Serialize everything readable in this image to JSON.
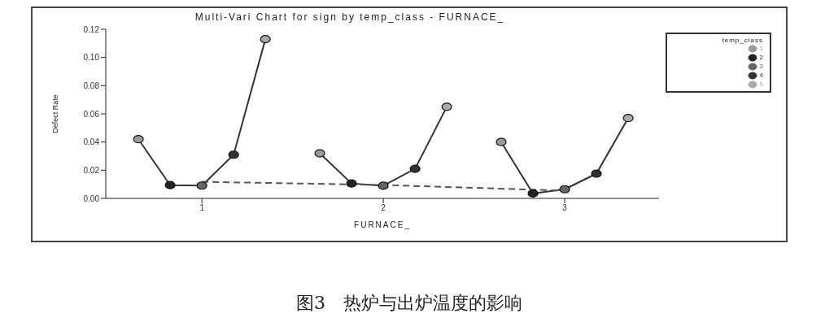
{
  "chart_data": {
    "type": "line",
    "title": "Multi-Vari Chart for sign by temp_class - FURNACE_",
    "xlabel": "FURNACE_",
    "ylabel": "Defect Rate",
    "legend_title": "temp_class",
    "legend": "right",
    "grid": false,
    "marker": "circle",
    "xlim": [
      0.47,
      3.52
    ],
    "xticks": [
      1,
      2,
      3
    ],
    "ylim": [
      0,
      0.12
    ],
    "yticks": [
      {
        "value": 0,
        "label": "0.00"
      },
      {
        "value": 0.02,
        "label": "0.02"
      },
      {
        "value": 0.04,
        "label": "0.04"
      },
      {
        "value": 0.06,
        "label": "0.06"
      },
      {
        "value": 0.08,
        "label": "0.08"
      },
      {
        "value": 0.1,
        "label": "0.10"
      },
      {
        "value": 0.12,
        "label": "0.12"
      }
    ],
    "series": [
      {
        "marker": "none",
        "color": "#333333",
        "x": [
          0.65,
          0.825,
          1,
          1.175,
          1.35
        ],
        "values": [
          0.042,
          0.0094,
          0.0091,
          0.031,
          0.113
        ]
      },
      {
        "marker": "none",
        "color": "#333333",
        "x": [
          1.65,
          1.825,
          2,
          2.175,
          2.35
        ],
        "values": [
          0.032,
          0.0106,
          0.009,
          0.021,
          0.065
        ]
      },
      {
        "marker": "none",
        "color": "#333333",
        "x": [
          2.65,
          2.825,
          3,
          3.175,
          3.35
        ],
        "values": [
          0.04,
          0.0035,
          0.0065,
          0.0176,
          0.057
        ]
      },
      {
        "marker": "none",
        "color": "#555555",
        "line_style": "dashed",
        "x": [
          1,
          2,
          3
        ],
        "values": [
          0.0118,
          0.0095,
          0.0055
        ]
      },
      {
        "type": "scatter",
        "name": "1",
        "color": "#9a9a9a",
        "x": [
          0.65,
          1.65,
          2.65
        ],
        "values": [
          0.042,
          0.032,
          0.04
        ]
      },
      {
        "type": "scatter",
        "name": "2",
        "color": "#222222",
        "x": [
          0.825,
          1.825,
          2.825
        ],
        "values": [
          0.0094,
          0.0106,
          0.0035
        ]
      },
      {
        "type": "scatter",
        "name": "3",
        "color": "#666666",
        "x": [
          1,
          2,
          3
        ],
        "values": [
          0.0091,
          0.009,
          0.0065
        ]
      },
      {
        "type": "scatter",
        "name": "4",
        "color": "#333333",
        "x": [
          1.175,
          2.175,
          3.175
        ],
        "values": [
          0.031,
          0.021,
          0.0176
        ]
      },
      {
        "type": "scatter",
        "name": "5",
        "color": "#aaaaaa",
        "x": [
          1.35,
          2.35,
          3.35
        ],
        "values": [
          0.113,
          0.065,
          0.057
        ]
      }
    ],
    "annotations": [
      "图3　热炉与出炉温度的影响"
    ]
  }
}
